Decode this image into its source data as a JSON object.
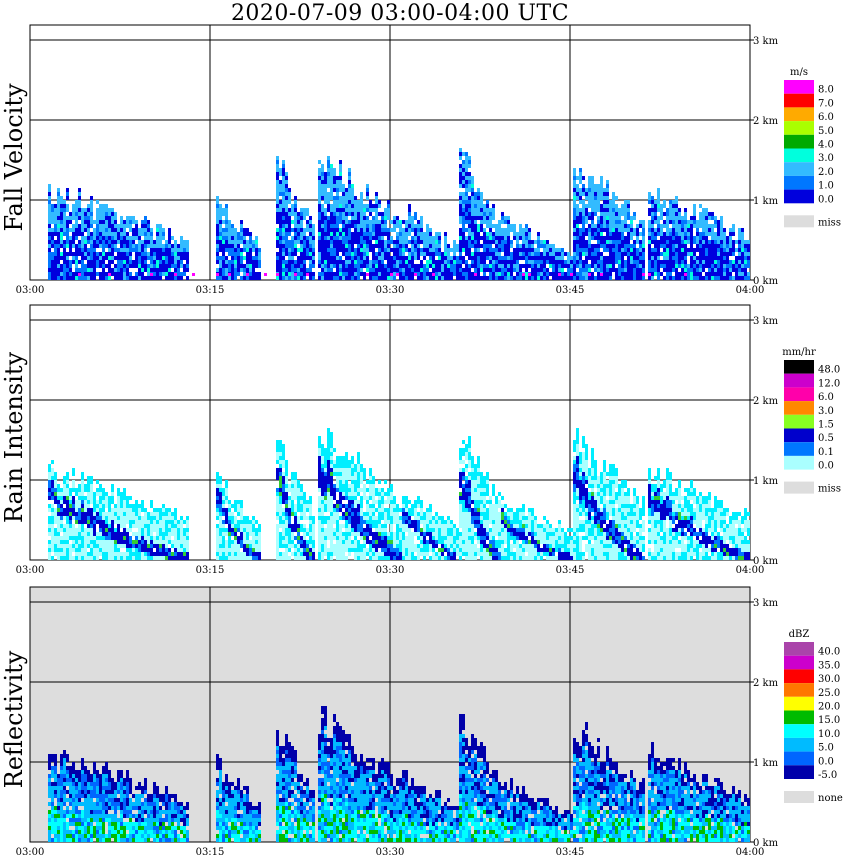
{
  "title": "2020-07-09   03:00-04:00 UTC",
  "colors": {
    "velocity": {
      "c0": "#0000dd",
      "c1": "#0077ff",
      "c2": "#33bbff",
      "c3": "#00ffdd",
      "c4": "#00aa00",
      "c5": "#aaff00",
      "c6": "#ffaa00",
      "c7": "#ff0000",
      "c8": "#ff00ff",
      "miss": "#dddddd"
    },
    "rain": {
      "c0": "#aaffff",
      "c1": "#00eeff",
      "c2": "#0077ff",
      "c3": "#0000cc",
      "c4": "#33cc33",
      "c5": "#88ff22",
      "c6": "#ffdd00",
      "c7": "#ff8800",
      "c8": "#ff0000",
      "c9": "#ff00aa",
      "c10": "#cc00cc",
      "c11": "#660066",
      "c12": "#000000",
      "miss": "#dddddd"
    },
    "refl": {
      "c0": "#0000aa",
      "c1": "#0066ff",
      "c2": "#00bbff",
      "c3": "#00ffff",
      "c4": "#00bb00",
      "c5": "#ffff00",
      "c6": "#ff7700",
      "c7": "#ff0000",
      "c8": "#cc00cc",
      "c9": "#aa44aa",
      "none": "#dddddd",
      "bg": "#dddddd"
    }
  },
  "chart_data": [
    {
      "type": "heatmap",
      "name": "Fall Velocity",
      "ylabel": "Fall Velocity",
      "x_range": [
        "03:00",
        "04:00"
      ],
      "x_ticks": [
        "03:00",
        "03:15",
        "03:30",
        "03:45",
        "04:00"
      ],
      "y_range_km": [
        0,
        3.0
      ],
      "y_ticks": [
        "0 km",
        "1 km",
        "2 km",
        "3 km"
      ],
      "grid": true,
      "colorbar_unit": "m/s",
      "colorbar_labels": [
        "8.0",
        "7.0",
        "6.0",
        "5.0",
        "4.0",
        "3.0",
        "2.0",
        "1.0",
        "0.0"
      ],
      "missing_label": "miss"
    },
    {
      "type": "heatmap",
      "name": "Rain Intensity",
      "ylabel": "Rain Intensity",
      "x_range": [
        "03:00",
        "04:00"
      ],
      "x_ticks": [
        "03:00",
        "03:15",
        "03:30",
        "03:45",
        "04:00"
      ],
      "y_range_km": [
        0,
        3.0
      ],
      "y_ticks": [
        "0 km",
        "1 km",
        "2 km",
        "3 km"
      ],
      "grid": true,
      "colorbar_unit": "mm/hr",
      "colorbar_labels": [
        "48.0",
        "12.0",
        "6.0",
        "3.0",
        "1.5",
        "0.5",
        "0.1",
        "0.0"
      ],
      "missing_label": "miss"
    },
    {
      "type": "heatmap",
      "name": "Reflectivity",
      "ylabel": "Reflectivity",
      "x_range": [
        "03:00",
        "04:00"
      ],
      "x_ticks": [
        "03:00",
        "03:15",
        "03:30",
        "03:45",
        "04:00"
      ],
      "y_range_km": [
        0,
        3.0
      ],
      "y_ticks": [
        "0 km",
        "1 km",
        "2 km",
        "3 km"
      ],
      "grid": true,
      "colorbar_unit": "dBZ",
      "colorbar_labels": [
        "40.0",
        "35.0",
        "30.0",
        "25.0",
        "20.0",
        "15.0",
        "10.0",
        "5.0",
        "0.0",
        "-5.0"
      ],
      "missing_label": "none"
    }
  ]
}
